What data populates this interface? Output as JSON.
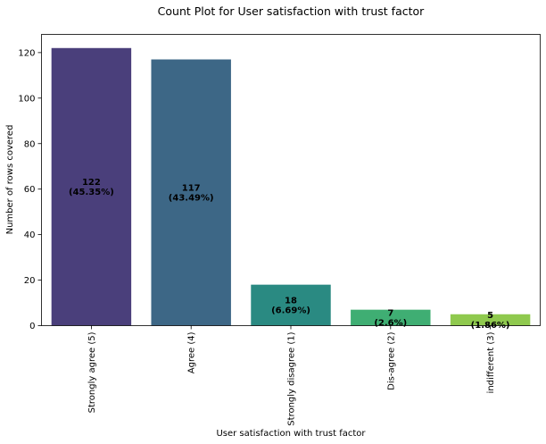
{
  "chart_data": {
    "type": "bar",
    "title": "Count Plot for User satisfaction with trust factor",
    "xlabel": "User satisfaction with trust factor",
    "ylabel": "Number of rows covered",
    "categories": [
      "Strongly agree (5)",
      "Agree (4)",
      "Strongly disagree (1)",
      "Dis-agree (2)",
      "indifferent (3)"
    ],
    "values": [
      122,
      117,
      18,
      7,
      5
    ],
    "value_labels": [
      "122",
      "117",
      "18",
      "7",
      "5"
    ],
    "percent_labels": [
      "(45.35%)",
      "(43.49%)",
      "(6.69%)",
      "(2.6%)",
      "(1.86%)"
    ],
    "colors": [
      "#4a3f7b",
      "#3d6786",
      "#2a8a82",
      "#3fae73",
      "#8fc94e"
    ],
    "ylim": [
      0,
      128
    ],
    "yticks": [
      0,
      20,
      40,
      60,
      80,
      100,
      120
    ],
    "grid": false,
    "legend": "none"
  }
}
